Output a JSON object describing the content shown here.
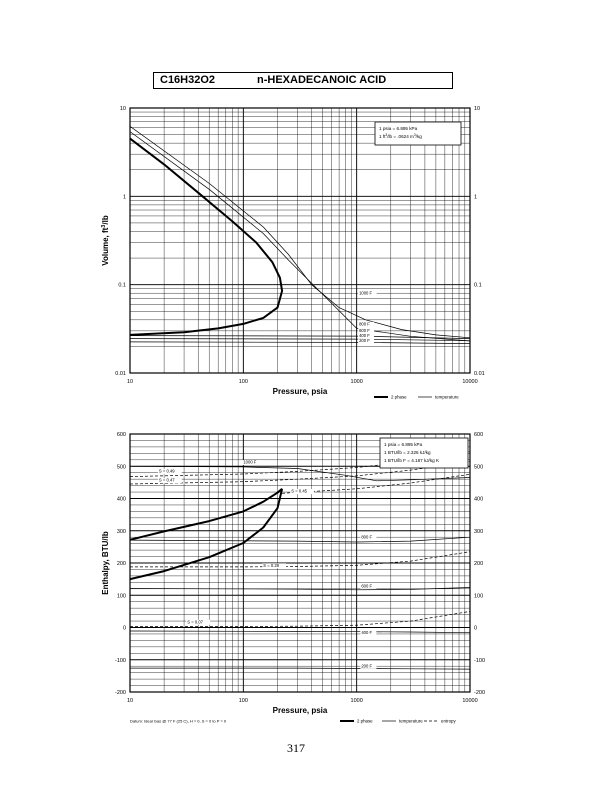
{
  "header": {
    "formula": "C16H32O2",
    "name": "n-HEXADECANOIC ACID"
  },
  "page_number": "317",
  "chart_data": [
    {
      "type": "line",
      "xscale": "log",
      "yscale": "log",
      "xlim": [
        10,
        10000
      ],
      "ylim": [
        0.01,
        10
      ],
      "xlabel": "Pressure,  psia",
      "ylabel": "Volume, ft^3/lb",
      "x_ticks": [
        "10",
        "100",
        "1000",
        "10000"
      ],
      "y_ticks": [
        "0.01",
        "0.1",
        "1",
        "10"
      ],
      "y_ticks_right": [
        "0.01",
        "0.1",
        "1",
        "10"
      ],
      "conversion_notes": [
        "1 psia  =  6.895 kPa",
        "1 ft^3/lb  =  .0624 m^3/kg"
      ],
      "legend": [
        "2 phase",
        "temperature"
      ],
      "series": [
        {
          "style": "2-phase",
          "x": [
            10,
            20,
            40,
            80,
            130,
            180,
            210,
            220,
            200,
            150,
            100,
            60,
            30,
            10
          ],
          "y": [
            4.5,
            2.3,
            1.1,
            0.52,
            0.3,
            0.18,
            0.12,
            0.085,
            0.055,
            0.042,
            0.036,
            0.032,
            0.029,
            0.027
          ]
        },
        {
          "style": "temperature",
          "label": "1000 F",
          "x": [
            10,
            50,
            150,
            250,
            400,
            700,
            1200,
            2500,
            5000,
            10000
          ],
          "y": [
            6.2,
            1.4,
            0.45,
            0.22,
            0.1,
            0.055,
            0.04,
            0.031,
            0.027,
            0.025
          ]
        },
        {
          "style": "temperature",
          "label": "800 F",
          "x": [
            10,
            50,
            150,
            250,
            1000,
            3000,
            10000
          ],
          "y": [
            5.4,
            1.2,
            0.38,
            0.19,
            0.032,
            0.026,
            0.023
          ]
        },
        {
          "style": "temperature",
          "label": "600 F",
          "x": [
            10,
            1000,
            10000
          ],
          "y": [
            0.0265,
            0.0262,
            0.0245
          ]
        },
        {
          "style": "temperature",
          "label": "400 F",
          "x": [
            10,
            1000,
            10000
          ],
          "y": [
            0.0245,
            0.0242,
            0.0232
          ]
        },
        {
          "style": "temperature",
          "label": "200 F",
          "x": [
            10,
            1000,
            10000
          ],
          "y": [
            0.0225,
            0.0222,
            0.0215
          ]
        }
      ],
      "labels": [
        {
          "text": "1000 F",
          "x": 1050,
          "y": 0.077
        },
        {
          "text": "800 F",
          "x": 1050,
          "y": 0.0345
        },
        {
          "text": "600 F",
          "x": 1050,
          "y": 0.0293
        },
        {
          "text": "400 F",
          "x": 1050,
          "y": 0.0256
        },
        {
          "text": "200 F",
          "x": 1050,
          "y": 0.0223
        }
      ]
    },
    {
      "type": "line",
      "xscale": "log",
      "yscale": "linear",
      "xlim": [
        10,
        10000
      ],
      "ylim": [
        -200,
        600
      ],
      "xlabel": "Pressure,  psia",
      "ylabel": "Enthalpy, BTU/lb",
      "x_ticks": [
        "10",
        "100",
        "1000",
        "10000"
      ],
      "y_ticks": [
        "-200",
        "-100",
        "0",
        "100",
        "200",
        "300",
        "400",
        "500",
        "600"
      ],
      "y_ticks_right": [
        "-200",
        "-100",
        "0",
        "100",
        "200",
        "300",
        "400",
        "500",
        "600"
      ],
      "conversion_notes": [
        "1 psia  =  6.895 kPa",
        "1 BTU/lb  =  2.326 kJ/kg",
        "1 BTU/lb F  =  4.187 kJ/kg K"
      ],
      "legend": [
        "2 phase",
        "temperature",
        "entropy"
      ],
      "footnote": "Datum: Ideal Gas @ 77 F (25 C),  H = 0,  S = 0 to P = 0",
      "series": [
        {
          "style": "2-phase",
          "x": [
            10,
            20,
            50,
            100,
            150,
            200,
            220
          ],
          "y": [
            272,
            298,
            330,
            360,
            390,
            418,
            430
          ]
        },
        {
          "style": "2-phase",
          "x": [
            10,
            20,
            50,
            100,
            150,
            200,
            220
          ],
          "y": [
            150,
            175,
            218,
            262,
            310,
            370,
            430
          ]
        },
        {
          "style": "temperature",
          "label": "1000 F",
          "x": [
            10,
            100,
            300,
            800,
            1500,
            3000,
            10000
          ],
          "y": [
            500,
            498,
            493,
            472,
            455,
            458,
            465
          ]
        },
        {
          "style": "temperature",
          "label": "800 F",
          "x": [
            10,
            300,
            1000,
            3000,
            10000
          ],
          "y": [
            271,
            268,
            265,
            268,
            280
          ]
        },
        {
          "style": "temperature",
          "label": "600 F",
          "x": [
            10,
            300,
            1000,
            3000,
            10000
          ],
          "y": [
            121,
            119,
            117,
            118,
            124
          ]
        },
        {
          "style": "temperature",
          "label": "400 F",
          "x": [
            10,
            300,
            1000,
            3000,
            10000
          ],
          "y": [
            -11,
            -12,
            -13,
            -14,
            -16
          ]
        },
        {
          "style": "temperature",
          "label": "200 F",
          "x": [
            10,
            300,
            1000,
            3000,
            10000
          ],
          "y": [
            -126,
            -126,
            -127,
            -128,
            -129
          ]
        },
        {
          "style": "entropy",
          "label": "S = 0.49",
          "x": [
            10,
            100,
            300,
            1000,
            3000,
            10000
          ],
          "y": [
            468,
            476,
            484,
            496,
            514,
            545
          ]
        },
        {
          "style": "entropy",
          "label": "S = 0.47",
          "x": [
            10,
            100,
            300,
            1000,
            3000,
            10000
          ],
          "y": [
            445,
            452,
            460,
            470,
            488,
            515
          ]
        },
        {
          "style": "entropy",
          "label": "S = 0.45",
          "x": [
            220,
            1000,
            3000,
            10000
          ],
          "y": [
            416,
            430,
            448,
            475
          ]
        },
        {
          "style": "entropy",
          "label": "S = 0.28",
          "x": [
            10,
            100,
            300,
            1000,
            3000,
            10000
          ],
          "y": [
            188,
            188,
            189,
            193,
            206,
            235
          ]
        },
        {
          "style": "entropy",
          "label": "S = 0.07",
          "x": [
            10,
            100,
            300,
            1000,
            3000,
            10000
          ],
          "y": [
            3,
            3,
            4,
            7,
            20,
            50
          ]
        }
      ],
      "labels": [
        {
          "text": "1000 F",
          "x": 100,
          "y": 508
        },
        {
          "text": "S = 0.49",
          "x": 18,
          "y": 480
        },
        {
          "text": "S = 0.47",
          "x": 18,
          "y": 452
        },
        {
          "text": "S = 0.45",
          "x": 265,
          "y": 418
        },
        {
          "text": "800 F",
          "x": 1100,
          "y": 276
        },
        {
          "text": "S = 0.28",
          "x": 150,
          "y": 188
        },
        {
          "text": "600 F",
          "x": 1100,
          "y": 124
        },
        {
          "text": "S = 0.07",
          "x": 32,
          "y": 13
        },
        {
          "text": "400 F",
          "x": 1100,
          "y": -20
        },
        {
          "text": "200 F",
          "x": 1100,
          "y": -124
        }
      ]
    }
  ]
}
